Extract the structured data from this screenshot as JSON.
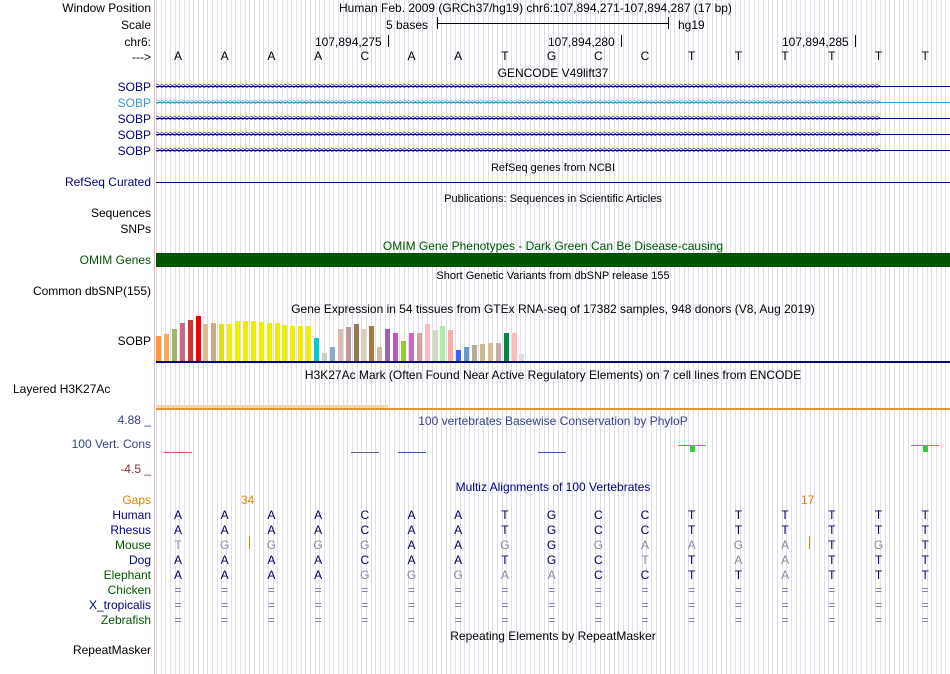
{
  "header": {
    "position_title": "Human Feb. 2009 (GRCh37/hg19)   chr6:107,894,271-107,894,287 (17 bp)",
    "scale_text": "5 bases",
    "assembly": "hg19",
    "ticks": [
      "107,894,275",
      "107,894,280",
      "107,894,285"
    ]
  },
  "labels": {
    "window_position": "Window Position",
    "scale": "Scale",
    "chr": "chr6:",
    "strand": "--->",
    "gencode_genes": [
      "SOBP",
      "SOBP",
      "SOBP",
      "SOBP",
      "SOBP"
    ],
    "refseq": "RefSeq Curated",
    "sequences": "Sequences",
    "snps": "SNPs",
    "omim": "OMIM Genes",
    "dbsnp": "Common dbSNP(155)",
    "gtex_gene": "SOBP",
    "h3k27ac": "Layered H3K27Ac",
    "cons_max": "4.88 _",
    "cons": "100 Vert. Cons",
    "cons_min": "-4.5 _",
    "gaps": "Gaps",
    "species": [
      "Human",
      "Rhesus",
      "Mouse",
      "Dog",
      "Elephant",
      "Chicken",
      "X_tropicalis",
      "Zebrafish"
    ],
    "repeatmasker": "RepeatMasker"
  },
  "titles": {
    "gencode": "GENCODE V49lift37",
    "refseq": "RefSeq genes from NCBI",
    "publications": "Publications: Sequences in Scientific Articles",
    "omim": "OMIM Gene Phenotypes - Dark Green Can Be Disease-causing",
    "dbsnp": "Short Genetic Variants from dbSNP release 155",
    "gtex": "Gene Expression in 54 tissues from GTEx RNA-seq of 17382 samples, 948 donors (V8, Aug 2019)",
    "h3k27ac": "H3K27Ac Mark (Often Found Near Active Regulatory Elements) on 7 cell lines from ENCODE",
    "phylop": "100 vertebrates Basewise Conservation by PhyloP",
    "multiz": "Multiz Alignments of 100 Vertebrates",
    "repeatmasker": "Repeating Elements by RepeatMasker"
  },
  "bases": [
    "A",
    "A",
    "A",
    "A",
    "C",
    "A",
    "A",
    "T",
    "G",
    "C",
    "C",
    "T",
    "T",
    "T",
    "T",
    "T",
    "T"
  ],
  "gap_counts": [
    "34",
    "17"
  ],
  "alignment": {
    "Human": [
      "A",
      "A",
      "A",
      "A",
      "C",
      "A",
      "A",
      "T",
      "G",
      "C",
      "C",
      "T",
      "T",
      "T",
      "T",
      "T",
      "T"
    ],
    "Rhesus": [
      "A",
      "A",
      "A",
      "A",
      "C",
      "A",
      "A",
      "T",
      "G",
      "C",
      "C",
      "T",
      "T",
      "T",
      "T",
      "T",
      "T"
    ],
    "Mouse": [
      "T",
      "G",
      "G",
      "G",
      "G",
      "A",
      "A",
      "G",
      "G",
      "G",
      "A",
      "A",
      "G",
      "A",
      "T",
      "G",
      "T"
    ],
    "Dog": [
      "A",
      "A",
      "A",
      "A",
      "C",
      "A",
      "A",
      "T",
      "G",
      "C",
      "T",
      "T",
      "A",
      "A",
      "T",
      "T",
      "T"
    ],
    "Elephant": [
      "A",
      "A",
      "A",
      "A",
      "G",
      "G",
      "G",
      "A",
      "A",
      "C",
      "C",
      "T",
      "T",
      "A",
      "T",
      "T",
      "T"
    ],
    "Chicken": [
      "=",
      "=",
      "=",
      "=",
      "=",
      "=",
      "=",
      "=",
      "=",
      "=",
      "=",
      "=",
      "=",
      "=",
      "=",
      "=",
      "="
    ],
    "X_tropicalis": [
      "=",
      "=",
      "=",
      "=",
      "=",
      "=",
      "=",
      "=",
      "=",
      "=",
      "=",
      "=",
      "=",
      "=",
      "=",
      "=",
      "="
    ],
    "Zebrafish": [
      "=",
      "=",
      "=",
      "=",
      "=",
      "=",
      "=",
      "=",
      "=",
      "=",
      "=",
      "=",
      "=",
      "=",
      "=",
      "=",
      "="
    ]
  },
  "colors": {
    "navy": "#000080",
    "gencode_highlight": "#3399cc",
    "omim": "#005500",
    "gaps": "#dd8800",
    "cons_max": "#334488",
    "cons_min": "#883333",
    "phylop_pos": "#33cc33",
    "h3k27ac": "#dd9933"
  },
  "gtex_colors": [
    "#ff9933",
    "#ffaa55",
    "#99bb66",
    "#cc6688",
    "#cc3333",
    "#ee0000",
    "#ddbb99",
    "#ccaa88",
    "#dddd22",
    "#eeee00",
    "#eeee00",
    "#eeee00",
    "#eeee00",
    "#eeee00",
    "#eeee00",
    "#eeee00",
    "#eeee00",
    "#eeee00",
    "#eeee00",
    "#eeee00",
    "#00cccc",
    "#cccccc",
    "#88aacc",
    "#ddbbaa",
    "#bb9999",
    "#997755",
    "#ddccbb",
    "#aa7744",
    "#ccbbaa",
    "#9966aa",
    "#bb55bb",
    "#99cc33",
    "#cc66cc",
    "#ccaa99",
    "#ffbbbb",
    "#ccddbb",
    "#aaeeaa",
    "#ffaaaa",
    "#3366ff",
    "#6699cc",
    "#bbaa99",
    "#ccbb88",
    "#ddbb99",
    "#ccaaaa",
    "#008844",
    "#ffbbbb",
    "#dddddd"
  ],
  "gtex_levels": [
    0.55,
    0.6,
    0.72,
    0.85,
    0.9,
    1.0,
    0.82,
    0.85,
    0.82,
    0.82,
    0.88,
    0.88,
    0.88,
    0.86,
    0.85,
    0.85,
    0.8,
    0.78,
    0.78,
    0.78,
    0.52,
    0.18,
    0.3,
    0.72,
    0.75,
    0.82,
    0.72,
    0.78,
    0.3,
    0.72,
    0.62,
    0.45,
    0.62,
    0.62,
    0.82,
    0.68,
    0.78,
    0.68,
    0.25,
    0.3,
    0.35,
    0.38,
    0.4,
    0.4,
    0.62,
    0.62,
    0.15
  ],
  "phylop": [
    {
      "col": 0,
      "frac": 0.6,
      "dir": "down",
      "color": "#cc5555"
    },
    {
      "col": 4,
      "frac": 0.9,
      "dir": "down",
      "color": "#666699"
    },
    {
      "col": 5,
      "frac": 0.9,
      "dir": "down",
      "color": "#4455aa"
    },
    {
      "col": 8,
      "frac": 0.9,
      "dir": "down",
      "color": "#4455aa"
    },
    {
      "col": 11,
      "frac": 0.9,
      "dir": "up",
      "color": "#33cc33"
    },
    {
      "col": 16,
      "frac": 0.9,
      "dir": "up",
      "color": "#33cc33"
    }
  ]
}
